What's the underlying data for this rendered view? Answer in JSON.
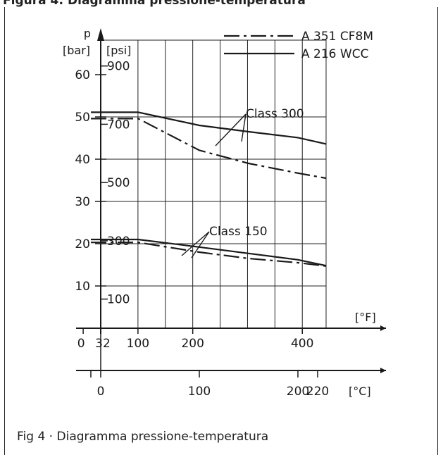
{
  "header": {
    "text": "Figura 4: Diagramma pressione-temperatura"
  },
  "caption": {
    "figure": "Fig  4",
    "separator": " · ",
    "title": "Diagramma pressione-temperatura"
  },
  "chart_data": {
    "type": "line",
    "title": "",
    "y_axis": {
      "label": "p",
      "bar": {
        "unit": "[bar]",
        "ticks": [
          10,
          20,
          30,
          40,
          50,
          60
        ],
        "range": [
          2,
          60
        ]
      },
      "psi": {
        "unit": "[psi]",
        "ticks": [
          100,
          300,
          500,
          700,
          900
        ]
      }
    },
    "x_axis": {
      "fahrenheit": {
        "unit": "[°F]",
        "ticks": [
          "0",
          "32",
          "100",
          "200",
          "400"
        ],
        "tick_values": [
          0,
          32,
          100,
          200,
          400
        ]
      },
      "celsius": {
        "unit": "[°C]",
        "ticks": [
          "0",
          "100",
          "200",
          "220"
        ],
        "tick_values": [
          0,
          100,
          200,
          220
        ]
      }
    },
    "grid": true,
    "legend": {
      "placement": "top-right",
      "entries": [
        {
          "label": "A 351 CF8M",
          "style": "dash-dot"
        },
        {
          "label": "A 216 WCC",
          "style": "solid"
        }
      ]
    },
    "annotations": [
      "Class 300",
      "Class 150"
    ],
    "x_unit_of_data": "°C",
    "series": [
      {
        "name": "A 216 WCC",
        "group": "Class 300",
        "x": [
          -10,
          38,
          100,
          150,
          200,
          232
        ],
        "y": [
          51.1,
          51.1,
          48.0,
          46.5,
          45.1,
          43.6
        ]
      },
      {
        "name": "A 351 CF8M",
        "group": "Class 300",
        "x": [
          -10,
          38,
          100,
          150,
          200,
          232
        ],
        "y": [
          49.6,
          49.6,
          42.1,
          39.0,
          36.7,
          35.5
        ]
      },
      {
        "name": "A 216 WCC",
        "group": "Class 150",
        "x": [
          -10,
          38,
          100,
          150,
          200,
          232
        ],
        "y": [
          21.0,
          21.0,
          19.2,
          17.7,
          16.2,
          14.8
        ]
      },
      {
        "name": "A 351 CF8M",
        "group": "Class 150",
        "x": [
          -10,
          38,
          100,
          150,
          200,
          232
        ],
        "y": [
          20.3,
          20.3,
          18.0,
          16.5,
          15.5,
          14.7
        ]
      }
    ]
  }
}
